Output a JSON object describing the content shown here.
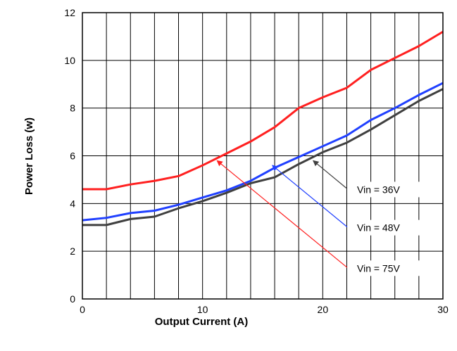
{
  "chart_data": {
    "type": "line",
    "xlabel": "Output Current (A)",
    "ylabel": "Power Loss (w)",
    "xlim": [
      0,
      30
    ],
    "ylim": [
      0,
      12
    ],
    "x_ticks": [
      0,
      10,
      20,
      30
    ],
    "y_ticks": [
      0,
      2,
      4,
      6,
      8,
      10,
      12
    ],
    "grid": true,
    "x_grid_step": 2,
    "y_grid_step": 2,
    "series": [
      {
        "name": "Vin = 75V",
        "color": "#ff2020",
        "x": [
          0,
          2,
          4,
          6,
          8,
          10,
          12,
          14,
          16,
          18,
          20,
          22,
          24,
          26,
          28,
          30
        ],
        "y": [
          4.6,
          4.6,
          4.8,
          4.95,
          5.15,
          5.6,
          6.1,
          6.6,
          7.2,
          8.0,
          8.45,
          8.85,
          9.6,
          10.1,
          10.6,
          11.2
        ]
      },
      {
        "name": "Vin = 48V",
        "color": "#2040ff",
        "x": [
          0,
          2,
          4,
          6,
          8,
          10,
          12,
          14,
          16,
          18,
          20,
          22,
          24,
          26,
          28,
          30
        ],
        "y": [
          3.3,
          3.4,
          3.6,
          3.7,
          3.95,
          4.25,
          4.55,
          4.95,
          5.5,
          5.95,
          6.4,
          6.85,
          7.5,
          8.0,
          8.55,
          9.05
        ]
      },
      {
        "name": "Vin = 36V",
        "color": "#404040",
        "x": [
          0,
          2,
          4,
          6,
          8,
          10,
          12,
          14,
          16,
          18,
          20,
          22,
          24,
          26,
          28,
          30
        ],
        "y": [
          3.1,
          3.1,
          3.35,
          3.45,
          3.8,
          4.1,
          4.45,
          4.85,
          5.1,
          5.65,
          6.15,
          6.55,
          7.1,
          7.7,
          8.3,
          8.8
        ]
      }
    ],
    "annotations": [
      {
        "text": "Vin = 36V",
        "series": 2,
        "point": [
          19.2,
          5.8
        ],
        "label_at": [
          22.5,
          4.5
        ]
      },
      {
        "text": "Vin = 48V",
        "series": 1,
        "point": [
          15.8,
          5.6
        ],
        "label_at": [
          22.5,
          2.9
        ]
      },
      {
        "text": "Vin = 75V",
        "series": 0,
        "point": [
          11.2,
          5.8
        ],
        "label_at": [
          22.5,
          1.2
        ]
      }
    ]
  }
}
